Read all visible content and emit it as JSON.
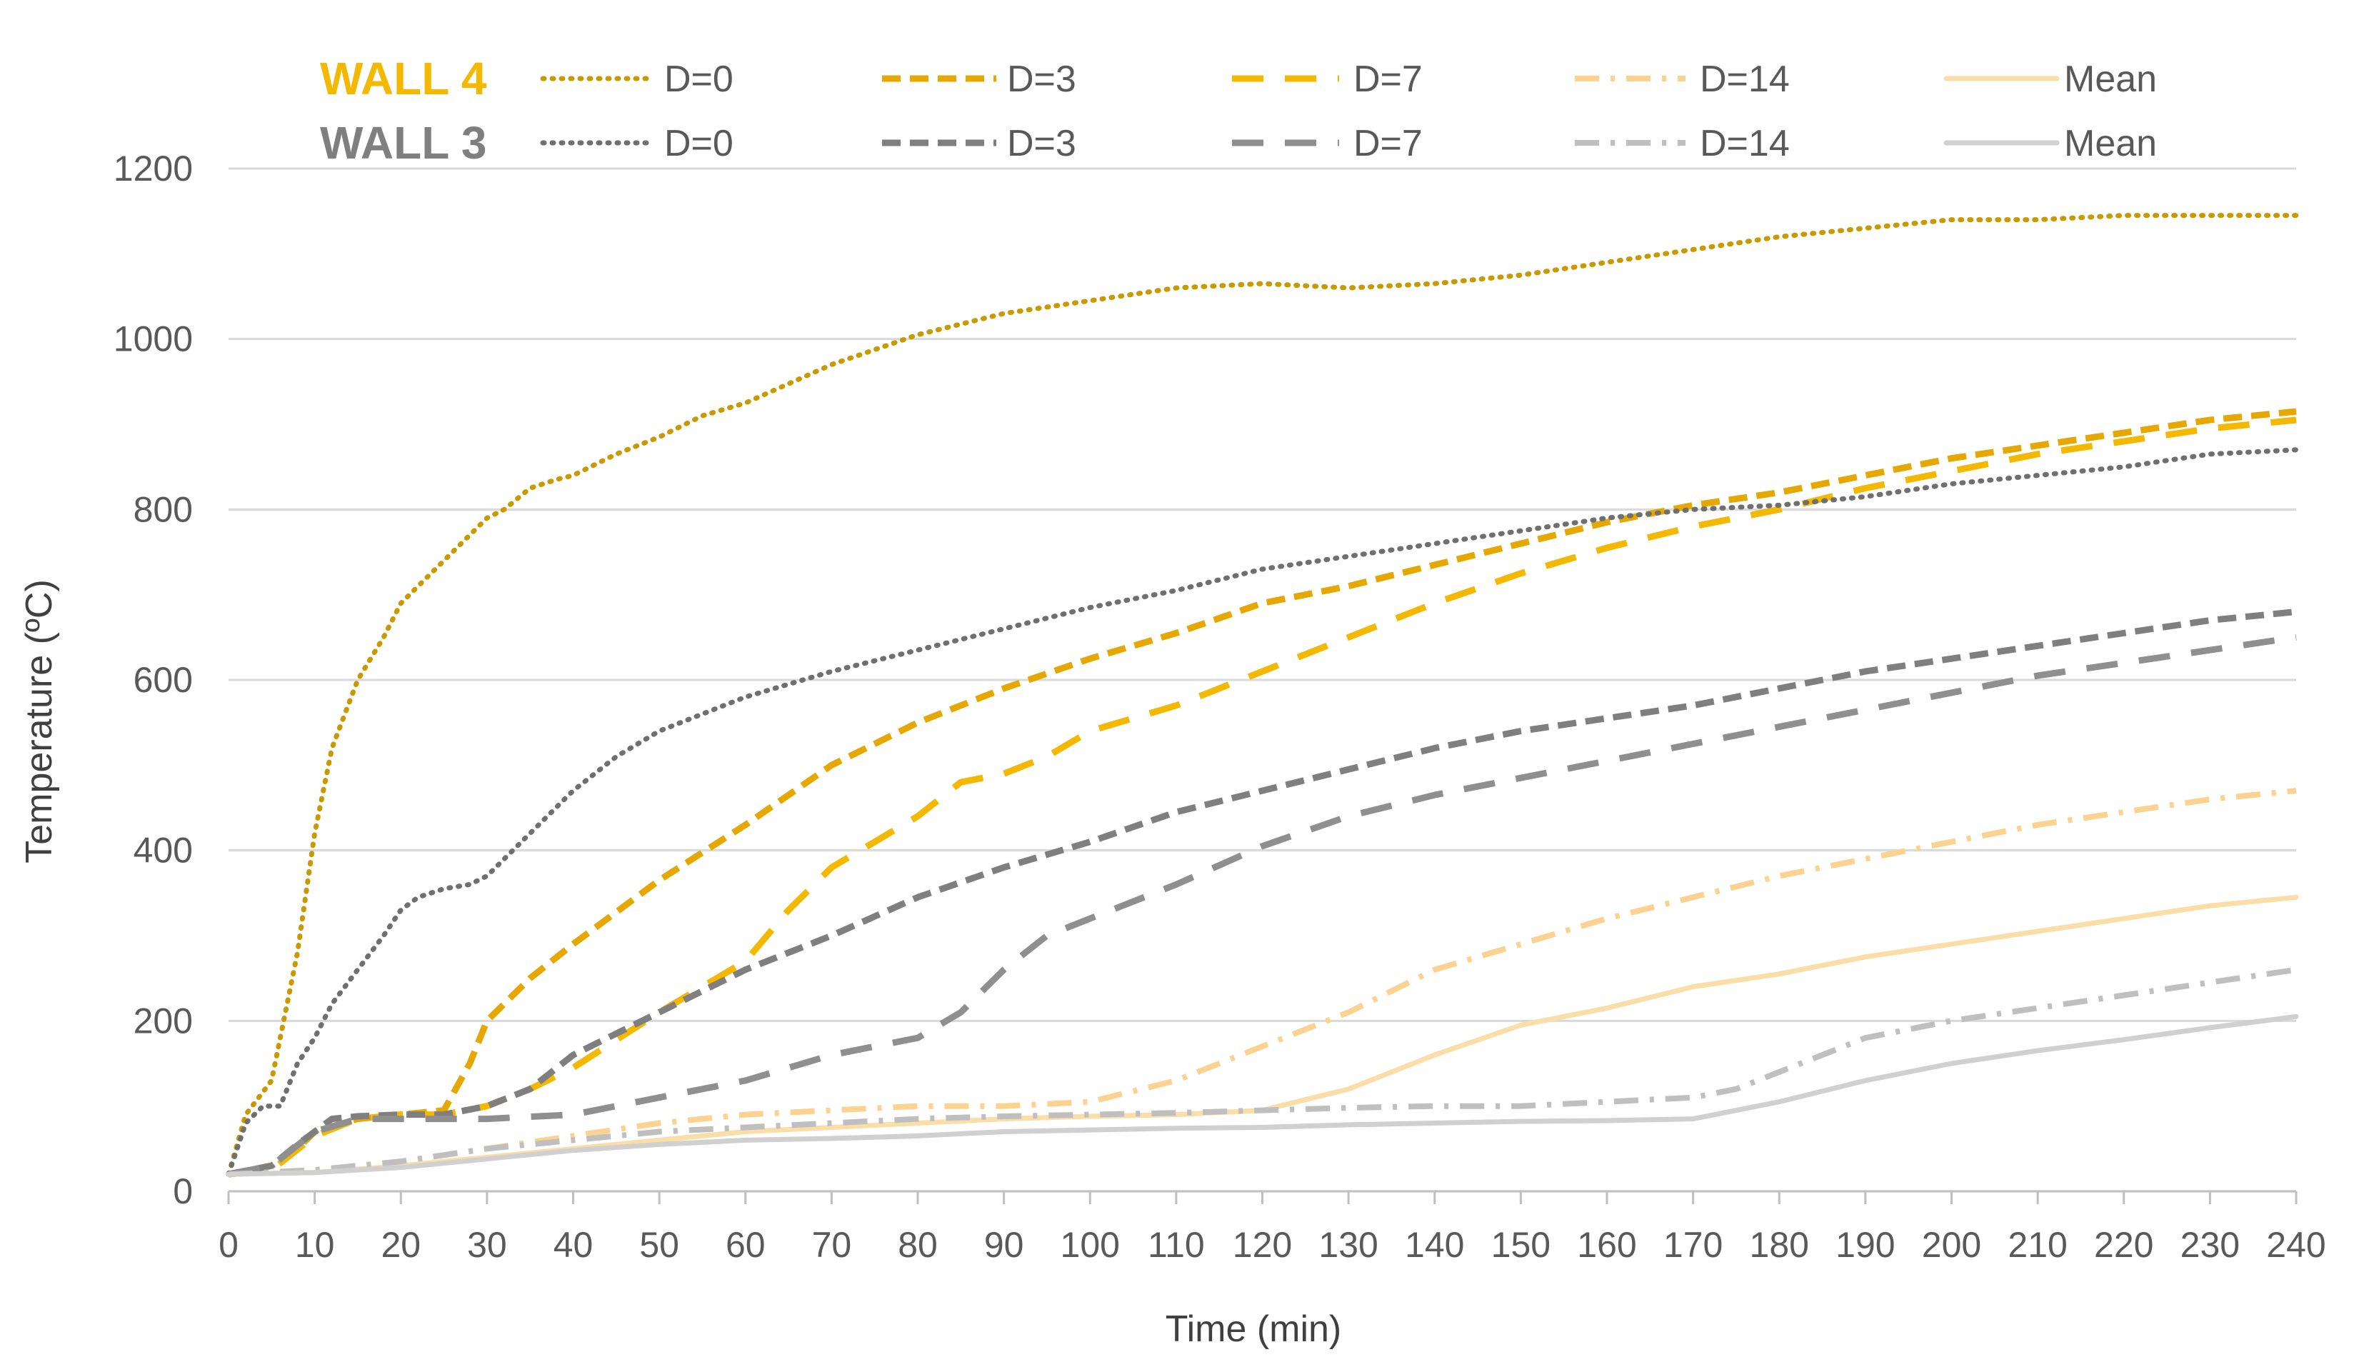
{
  "chart_data": {
    "type": "line",
    "title": "",
    "xlabel": "Time (min)",
    "ylabel": "Temperature (ºC)",
    "xlim": [
      0,
      240
    ],
    "ylim": [
      0,
      1200
    ],
    "xticks": [
      "0",
      "10",
      "20",
      "30",
      "40",
      "50",
      "60",
      "70",
      "80",
      "90",
      "100",
      "110",
      "120",
      "130",
      "140",
      "150",
      "160",
      "170",
      "180",
      "190",
      "200",
      "210",
      "220",
      "230",
      "240"
    ],
    "yticks": [
      "0",
      "200",
      "400",
      "600",
      "800",
      "1000",
      "1200"
    ],
    "grid": "horizontal",
    "legend_position": "top",
    "colors": {
      "wall4_title": "#F5B800",
      "wall3_title": "#7F7F7F",
      "w4_d0": "#C99A00",
      "w4_d3": "#E6A800",
      "w4_d7": "#F5B800",
      "w4_d14": "#FCD291",
      "w4_mean": "#FBDDA8",
      "w3_d0": "#6F6F6F",
      "w3_d3": "#7F7F7F",
      "w3_d7": "#8F8F8F",
      "w3_d14": "#BFBFBF",
      "w3_mean": "#D0D0D0",
      "grid": "#D9D9D9",
      "axis": "#BFBFBF"
    },
    "legend": {
      "wall4": "WALL 4",
      "wall3": "WALL 3",
      "w4_labels": [
        "D=0",
        "D=3",
        "D=7",
        "D=14",
        "Mean"
      ],
      "w3_labels": [
        "D=0",
        "D=3",
        "D=7",
        "D=14",
        "Mean"
      ]
    },
    "series": [
      {
        "id": "w4_d0",
        "name": "WALL 4 D=0",
        "style": "dotted",
        "x": [
          0,
          2,
          5,
          8,
          10,
          12,
          15,
          18,
          20,
          22,
          25,
          28,
          30,
          32,
          35,
          38,
          40,
          45,
          50,
          55,
          60,
          70,
          80,
          90,
          100,
          110,
          120,
          130,
          140,
          150,
          160,
          170,
          180,
          190,
          200,
          210,
          220,
          230,
          240
        ],
        "y": [
          20,
          90,
          130,
          280,
          420,
          520,
          600,
          650,
          690,
          710,
          740,
          770,
          790,
          800,
          825,
          835,
          840,
          865,
          885,
          910,
          925,
          970,
          1005,
          1030,
          1045,
          1060,
          1065,
          1060,
          1065,
          1075,
          1090,
          1105,
          1120,
          1130,
          1140,
          1140,
          1145,
          1145,
          1145
        ]
      },
      {
        "id": "w4_d3",
        "name": "WALL 4 D=3",
        "style": "dashed",
        "x": [
          0,
          5,
          8,
          10,
          15,
          20,
          25,
          28,
          30,
          35,
          40,
          50,
          60,
          70,
          80,
          90,
          100,
          110,
          120,
          130,
          140,
          150,
          160,
          170,
          180,
          190,
          200,
          210,
          220,
          230,
          240
        ],
        "y": [
          20,
          30,
          50,
          70,
          85,
          90,
          95,
          150,
          200,
          250,
          290,
          365,
          430,
          500,
          550,
          590,
          625,
          655,
          690,
          710,
          735,
          760,
          785,
          805,
          820,
          840,
          860,
          875,
          890,
          905,
          915
        ]
      },
      {
        "id": "w4_d7",
        "name": "WALL 4 D=7",
        "style": "longdash",
        "x": [
          0,
          5,
          10,
          15,
          20,
          25,
          30,
          35,
          40,
          50,
          60,
          65,
          70,
          75,
          80,
          85,
          90,
          95,
          100,
          110,
          120,
          130,
          140,
          150,
          160,
          170,
          180,
          190,
          200,
          210,
          220,
          230,
          240
        ],
        "y": [
          20,
          25,
          65,
          85,
          90,
          90,
          100,
          120,
          145,
          210,
          270,
          330,
          380,
          410,
          440,
          480,
          490,
          510,
          540,
          570,
          610,
          650,
          690,
          725,
          755,
          780,
          800,
          825,
          845,
          865,
          880,
          895,
          905
        ]
      },
      {
        "id": "w4_d14",
        "name": "WALL 4 D=14",
        "style": "dashdot",
        "x": [
          0,
          10,
          20,
          30,
          40,
          50,
          60,
          70,
          80,
          90,
          100,
          110,
          120,
          130,
          140,
          150,
          160,
          170,
          180,
          190,
          200,
          210,
          220,
          230,
          240
        ],
        "y": [
          20,
          25,
          35,
          50,
          65,
          80,
          90,
          95,
          100,
          100,
          105,
          130,
          170,
          210,
          260,
          290,
          320,
          345,
          370,
          390,
          410,
          430,
          445,
          460,
          470
        ]
      },
      {
        "id": "w4_mean",
        "name": "WALL 4 Mean",
        "style": "solid",
        "x": [
          0,
          10,
          20,
          30,
          40,
          50,
          60,
          70,
          80,
          90,
          100,
          110,
          120,
          130,
          140,
          150,
          160,
          170,
          180,
          190,
          200,
          210,
          220,
          230,
          240
        ],
        "y": [
          20,
          22,
          30,
          40,
          50,
          60,
          70,
          75,
          80,
          85,
          88,
          90,
          95,
          120,
          160,
          195,
          215,
          240,
          255,
          275,
          290,
          305,
          320,
          335,
          345
        ]
      },
      {
        "id": "w3_d0",
        "name": "WALL 3 D=0",
        "style": "dotted",
        "x": [
          0,
          2,
          4,
          6,
          8,
          10,
          12,
          15,
          18,
          20,
          22,
          25,
          28,
          30,
          35,
          40,
          45,
          50,
          55,
          60,
          70,
          80,
          90,
          100,
          110,
          120,
          130,
          140,
          150,
          160,
          170,
          180,
          190,
          200,
          210,
          220,
          230,
          240
        ],
        "y": [
          20,
          80,
          100,
          100,
          150,
          180,
          220,
          260,
          300,
          330,
          345,
          355,
          360,
          370,
          420,
          470,
          510,
          540,
          560,
          580,
          610,
          635,
          660,
          685,
          705,
          730,
          745,
          760,
          775,
          790,
          800,
          805,
          815,
          830,
          840,
          850,
          865,
          870
        ]
      },
      {
        "id": "w3_d3",
        "name": "WALL 3 D=3",
        "style": "dashed",
        "x": [
          0,
          5,
          8,
          10,
          12,
          15,
          20,
          25,
          30,
          35,
          40,
          50,
          60,
          70,
          80,
          90,
          100,
          110,
          120,
          130,
          140,
          150,
          160,
          170,
          180,
          190,
          200,
          210,
          220,
          230,
          240
        ],
        "y": [
          20,
          30,
          55,
          70,
          85,
          88,
          90,
          90,
          100,
          120,
          160,
          210,
          260,
          300,
          345,
          380,
          410,
          445,
          470,
          495,
          520,
          540,
          555,
          570,
          590,
          610,
          625,
          640,
          655,
          670,
          680
        ]
      },
      {
        "id": "w3_d7",
        "name": "WALL 3 D=7",
        "style": "longdash",
        "x": [
          0,
          5,
          10,
          15,
          20,
          25,
          30,
          40,
          50,
          60,
          70,
          80,
          85,
          90,
          95,
          100,
          110,
          120,
          130,
          140,
          150,
          160,
          170,
          180,
          190,
          200,
          210,
          220,
          230,
          240
        ],
        "y": [
          20,
          30,
          70,
          85,
          85,
          85,
          85,
          90,
          110,
          130,
          160,
          180,
          210,
          260,
          300,
          320,
          360,
          405,
          440,
          465,
          485,
          505,
          525,
          545,
          565,
          585,
          605,
          620,
          635,
          650
        ]
      },
      {
        "id": "w3_d14",
        "name": "WALL 3 D=14",
        "style": "dashdot",
        "x": [
          0,
          10,
          20,
          30,
          40,
          50,
          60,
          70,
          80,
          90,
          100,
          110,
          120,
          130,
          140,
          150,
          160,
          170,
          175,
          180,
          190,
          200,
          210,
          220,
          230,
          240
        ],
        "y": [
          20,
          25,
          35,
          50,
          60,
          70,
          75,
          80,
          85,
          88,
          90,
          92,
          95,
          98,
          100,
          100,
          105,
          110,
          120,
          140,
          180,
          200,
          215,
          230,
          245,
          260
        ]
      },
      {
        "id": "w3_mean",
        "name": "WALL 3 Mean",
        "style": "solid",
        "x": [
          0,
          10,
          20,
          30,
          40,
          50,
          60,
          70,
          80,
          90,
          100,
          110,
          120,
          130,
          140,
          150,
          160,
          170,
          180,
          190,
          200,
          210,
          220,
          230,
          240
        ],
        "y": [
          20,
          22,
          28,
          38,
          48,
          55,
          60,
          62,
          65,
          70,
          72,
          74,
          75,
          78,
          80,
          82,
          83,
          85,
          105,
          130,
          150,
          165,
          178,
          192,
          205
        ]
      }
    ]
  }
}
